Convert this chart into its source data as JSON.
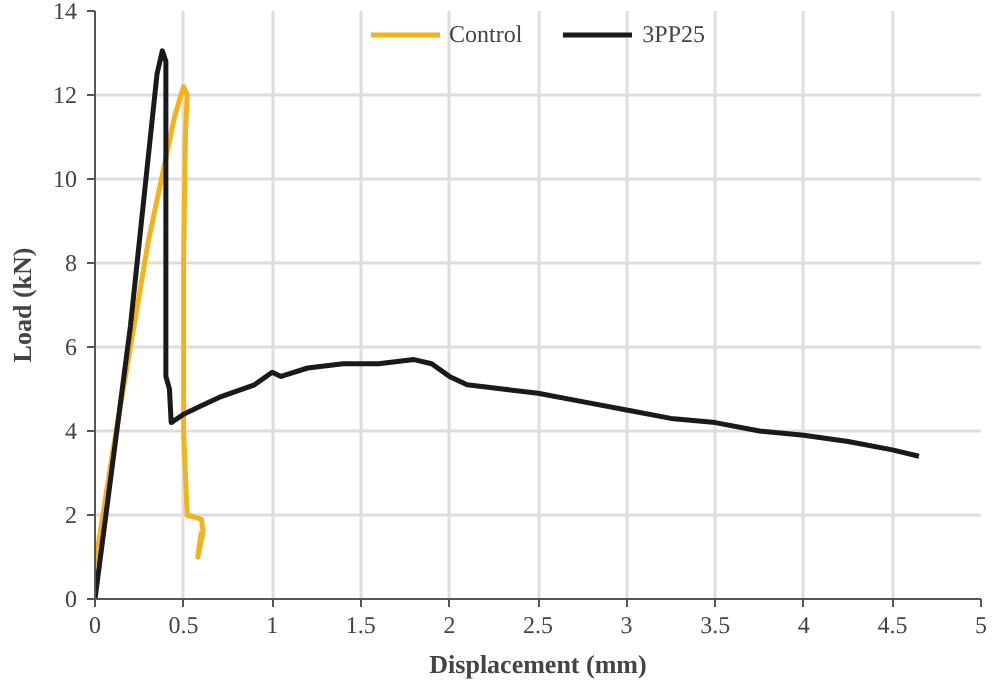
{
  "chart_data": {
    "type": "line",
    "xlabel": "Displacement (mm)",
    "ylabel": "Load (kN)",
    "xlim": [
      0,
      5
    ],
    "xticks": [
      0,
      0.5,
      1,
      1.5,
      2,
      2.5,
      3,
      3.5,
      4,
      4.5,
      5
    ],
    "ylim": [
      0,
      14
    ],
    "yticks": [
      0,
      2,
      4,
      6,
      8,
      10,
      12,
      14
    ],
    "grid": true,
    "legend": "top",
    "marker": "none",
    "line_style": "solid",
    "series": [
      {
        "name": "Control",
        "color": "#f5b21a",
        "x": [
          0,
          0.1,
          0.3,
          0.45,
          0.5,
          0.52,
          0.51,
          0.5,
          0.5,
          0.52,
          0.6,
          0.61,
          0.58,
          0.6
        ],
        "values": [
          0.8,
          3.5,
          8.5,
          11.5,
          12.2,
          12.0,
          11,
          8,
          4,
          2.0,
          1.9,
          1.6,
          1.0,
          1.6
        ]
      },
      {
        "name": "3PP25",
        "color": "#1a1a1a",
        "x": [
          0,
          0.2,
          0.35,
          0.38,
          0.4,
          0.4,
          0.42,
          0.43,
          0.5,
          0.6,
          0.7,
          0.9,
          1.0,
          1.05,
          1.2,
          1.4,
          1.6,
          1.8,
          1.9,
          2.0,
          2.1,
          2.3,
          2.5,
          2.75,
          3.0,
          3.25,
          3.5,
          3.75,
          4.0,
          4.25,
          4.5,
          4.65
        ],
        "values": [
          0,
          6.5,
          12.5,
          13.05,
          12.8,
          5.3,
          5.0,
          4.2,
          4.4,
          4.6,
          4.8,
          5.1,
          5.4,
          5.3,
          5.5,
          5.6,
          5.6,
          5.7,
          5.6,
          5.3,
          5.1,
          5.0,
          4.9,
          4.7,
          4.5,
          4.3,
          4.2,
          4.0,
          3.9,
          3.75,
          3.55,
          3.4
        ]
      }
    ]
  }
}
